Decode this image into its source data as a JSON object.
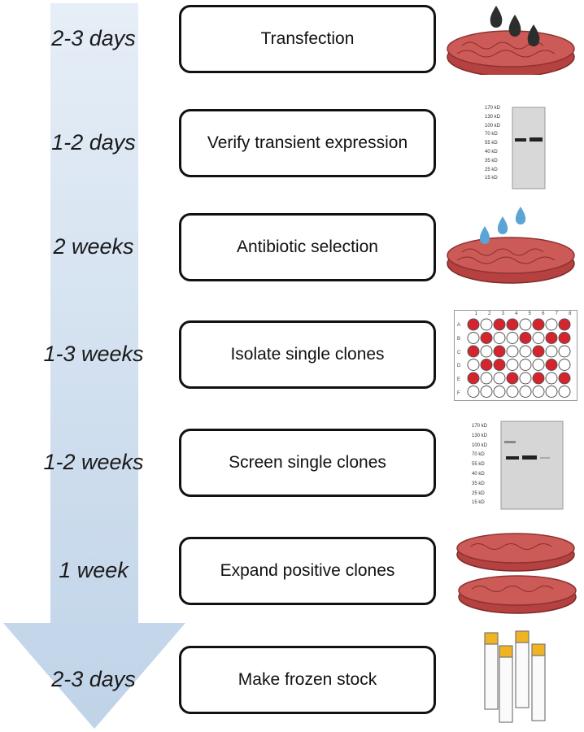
{
  "steps": [
    {
      "duration": "2-3 days",
      "label": "Transfection",
      "icon": "petri-dish-with-dark-drops-icon"
    },
    {
      "duration": "1-2 days",
      "label": "Verify transient expression",
      "icon": "western-blot-icon"
    },
    {
      "duration": "2 weeks",
      "label": "Antibiotic selection",
      "icon": "petri-dish-with-blue-drops-icon"
    },
    {
      "duration": "1-3 weeks",
      "label": "Isolate single clones",
      "icon": "well-plate-icon"
    },
    {
      "duration": "1-2 weeks",
      "label": "Screen single clones",
      "icon": "western-blot-icon"
    },
    {
      "duration": "1 week",
      "label": "Expand positive clones",
      "icon": "two-petri-dishes-icon"
    },
    {
      "duration": "2-3 days",
      "label": "Make frozen stock",
      "icon": "cryo-vials-icon"
    }
  ],
  "blot": {
    "ladder": [
      "170 kD",
      "130 kD",
      "100 kD",
      "70 kD",
      "55 kD",
      "40 kD",
      "35 kD",
      "25 kD",
      "15 kD"
    ]
  },
  "plate": {
    "col_labels": [
      "1",
      "2",
      "3",
      "4",
      "5",
      "6",
      "7",
      "8"
    ],
    "row_labels": [
      "A",
      "B",
      "C",
      "D",
      "E",
      "F"
    ]
  },
  "colors": {
    "arrow": "#c9d9ea",
    "dish_fill": "#c8504f",
    "drop_dark": "#2d2d2d",
    "drop_blue": "#5aa4d6",
    "well_red": "#d6242e"
  }
}
